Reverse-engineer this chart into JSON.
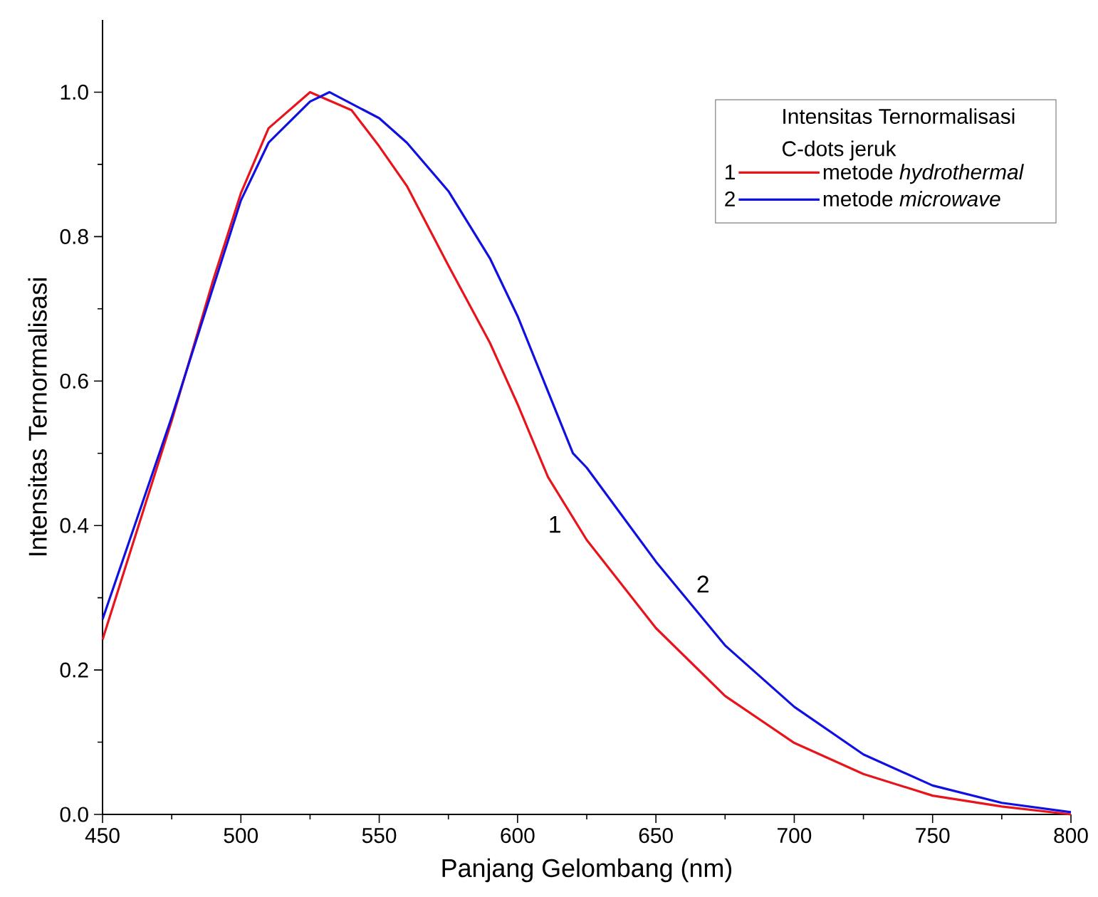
{
  "chart_data": {
    "type": "line",
    "xlabel": "Panjang Gelombang (nm)",
    "ylabel": "Intensitas Ternormalisasi",
    "legend_title": "Intensitas Ternormalisasi C-dots jeruk",
    "xlim": [
      450,
      800
    ],
    "ylim": [
      0,
      1.1
    ],
    "xticks": [
      450,
      500,
      550,
      600,
      650,
      700,
      750,
      800
    ],
    "yticks": [
      {
        "value": 0,
        "label": "0.0"
      },
      {
        "value": 0.2,
        "label": "0.2"
      },
      {
        "value": 0.4,
        "label": "0.4"
      },
      {
        "value": 0.6,
        "label": "0.6"
      },
      {
        "value": 0.8,
        "label": "0.8"
      },
      {
        "value": 1.0,
        "label": "1.0"
      }
    ],
    "legend": "top right",
    "grid": false,
    "marker": "none",
    "line_style": "solid",
    "annotations": [
      "1",
      "2"
    ],
    "series": [
      {
        "name": "metode *hydrothermal*",
        "color": "#e8141c",
        "x": [
          450,
          475,
          490,
          500,
          510,
          525,
          540,
          550,
          560,
          575,
          590,
          600,
          611,
          625,
          650,
          675,
          700,
          725,
          750,
          775,
          800
        ],
        "values": [
          0.242,
          0.545,
          0.74,
          0.86,
          0.95,
          1.0,
          0.975,
          0.925,
          0.87,
          0.76,
          0.653,
          0.568,
          0.467,
          0.38,
          0.258,
          0.164,
          0.099,
          0.056,
          0.026,
          0.011,
          0.0
        ]
      },
      {
        "name": "metode  *microwave*",
        "color": "#1010e0",
        "x": [
          450,
          475,
          500,
          510,
          525,
          532,
          550,
          560,
          575,
          590,
          600,
          620,
          625,
          650,
          675,
          700,
          725,
          750,
          775,
          800
        ],
        "values": [
          0.27,
          0.55,
          0.85,
          0.93,
          0.987,
          1.0,
          0.964,
          0.93,
          0.863,
          0.77,
          0.69,
          0.5,
          0.48,
          0.35,
          0.234,
          0.149,
          0.083,
          0.04,
          0.016,
          0.003
        ]
      }
    ]
  }
}
